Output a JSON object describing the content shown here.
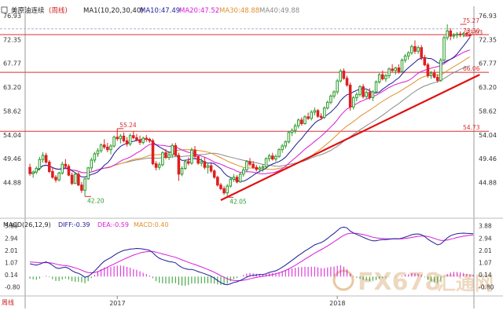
{
  "colors": {
    "up": "#2a9a2a",
    "down": "#df1f1f",
    "hline": "#d83030",
    "ma10": "#1c1c96",
    "ma20": "#d81ad8",
    "ma30": "#e0902a",
    "ma40": "#8a8a8a",
    "trend": "#e01010",
    "macd_dif": "#1c1c96",
    "macd_dea": "#d81ad8",
    "macd_pos": "#d81ad8",
    "macd_neg": "#2a9a2a",
    "axis_text": "#333333",
    "watermark": "#e8c8a0"
  },
  "legend": {
    "symbol": "美原油连续",
    "period": "(周线)",
    "ma_label": "MA1(10,20,30,40)",
    "ma10": "MA10:47.49",
    "ma20": "MA20:47.52",
    "ma30": "MA30:48.88",
    "ma40": "MA40:49.88",
    "macd_label": "MACD(26,12,9)",
    "diff": "DIFF:-0.39",
    "dea": "DEA:-0.59",
    "macd": "MACD:0.40"
  },
  "watermark": {
    "brand": "FX678",
    "cn": "汇通网"
  },
  "left_corner_label": "周线",
  "chart_data": [
    {
      "type": "candlestick",
      "title": "美原油连续 (周线)",
      "y_axis": {
        "min": 40.44,
        "max": 76.93,
        "ticks": [
          76.93,
          72.35,
          67.77,
          63.2,
          58.62,
          54.04,
          49.46,
          44.88,
          40.3
        ],
        "tick_labels": [
          "76.93",
          "72.35",
          "67.77",
          "63.20",
          "58.62",
          "54.04",
          "49.46",
          "44.88"
        ]
      },
      "x_axis": {
        "labels": [
          "2017",
          "2018"
        ],
        "label_index": [
          27,
          95
        ]
      },
      "horizontal_lines": [
        {
          "value": 73.3,
          "label": "73.30"
        },
        {
          "value": 66.06,
          "label": "66.06"
        },
        {
          "value": 54.73,
          "label": "54.73"
        }
      ],
      "dashed_line": {
        "value": 74.4
      },
      "annotations": [
        {
          "index": 27,
          "value": 55.24,
          "label": "55.24"
        },
        {
          "index": 17,
          "value": 42.2,
          "label": "42.20"
        },
        {
          "index": 61,
          "value": 42.05,
          "label": "42.05"
        },
        {
          "index": 133,
          "value": 75.27,
          "label": "75.27"
        },
        {
          "index": 134,
          "value": 73.03,
          "label": "73.03"
        }
      ],
      "trendline": {
        "from": {
          "index": 59,
          "value": 41.5
        },
        "to": {
          "index": 139,
          "value": 65.6
        }
      },
      "ma_series": [
        {
          "name": "MA10",
          "key": "ma10",
          "window": 10
        },
        {
          "name": "MA20",
          "key": "ma20",
          "window": 20
        },
        {
          "name": "MA30",
          "key": "ma30",
          "window": 30
        },
        {
          "name": "MA40",
          "key": "ma40",
          "window": 40
        }
      ],
      "ohlc": [
        [
          47.8,
          48.5,
          46.2,
          46.6
        ],
        [
          46.6,
          47.2,
          45.8,
          46.9
        ],
        [
          46.9,
          48.0,
          46.5,
          47.6
        ],
        [
          47.6,
          49.8,
          47.2,
          49.3
        ],
        [
          49.3,
          50.7,
          48.7,
          50.1
        ],
        [
          50.1,
          50.6,
          48.5,
          48.8
        ],
        [
          48.8,
          49.2,
          46.7,
          47.0
        ],
        [
          47.0,
          47.8,
          45.6,
          45.9
        ],
        [
          45.9,
          46.3,
          44.9,
          45.4
        ],
        [
          45.4,
          47.0,
          45.1,
          46.7
        ],
        [
          46.7,
          48.9,
          46.4,
          48.4
        ],
        [
          48.4,
          49.4,
          47.6,
          48.0
        ],
        [
          48.0,
          48.4,
          46.1,
          46.3
        ],
        [
          46.3,
          46.8,
          44.4,
          44.7
        ],
        [
          44.7,
          46.9,
          44.6,
          46.5
        ],
        [
          46.5,
          46.9,
          44.2,
          44.4
        ],
        [
          44.4,
          45.0,
          42.9,
          43.4
        ],
        [
          43.4,
          45.8,
          42.2,
          45.6
        ],
        [
          45.6,
          47.9,
          45.4,
          47.7
        ],
        [
          47.7,
          49.7,
          47.1,
          49.2
        ],
        [
          49.2,
          50.8,
          48.7,
          50.4
        ],
        [
          50.4,
          51.5,
          49.8,
          51.0
        ],
        [
          51.0,
          52.4,
          50.6,
          52.1
        ],
        [
          52.1,
          53.2,
          51.3,
          51.7
        ],
        [
          51.7,
          52.5,
          50.7,
          51.2
        ],
        [
          51.2,
          52.3,
          50.3,
          51.9
        ],
        [
          51.9,
          53.9,
          51.6,
          53.6
        ],
        [
          53.6,
          55.24,
          52.9,
          53.3
        ],
        [
          53.3,
          54.2,
          52.4,
          53.8
        ],
        [
          53.8,
          54.5,
          52.6,
          52.9
        ],
        [
          52.9,
          53.6,
          51.8,
          52.3
        ],
        [
          52.3,
          54.3,
          51.9,
          53.9
        ],
        [
          53.9,
          54.8,
          53.2,
          53.5
        ],
        [
          53.5,
          54.2,
          52.8,
          53.1
        ],
        [
          53.1,
          53.9,
          52.1,
          52.6
        ],
        [
          52.6,
          53.7,
          52.2,
          53.4
        ],
        [
          53.4,
          54.0,
          52.7,
          53.2
        ],
        [
          53.2,
          53.5,
          52.5,
          52.9
        ],
        [
          52.9,
          53.3,
          48.2,
          48.5
        ],
        [
          48.5,
          49.0,
          47.2,
          47.8
        ],
        [
          47.8,
          48.8,
          47.3,
          48.3
        ],
        [
          48.3,
          50.9,
          48.0,
          50.6
        ],
        [
          50.6,
          51.3,
          49.4,
          49.7
        ],
        [
          49.7,
          50.6,
          49.2,
          50.2
        ],
        [
          50.2,
          52.4,
          49.6,
          52.0
        ],
        [
          52.0,
          52.5,
          49.9,
          50.1
        ],
        [
          50.1,
          50.6,
          45.2,
          46.5
        ],
        [
          46.5,
          48.0,
          46.1,
          47.6
        ],
        [
          47.6,
          49.3,
          47.3,
          48.9
        ],
        [
          48.9,
          49.7,
          48.2,
          48.6
        ],
        [
          48.6,
          51.6,
          48.3,
          51.1
        ],
        [
          51.1,
          51.9,
          49.5,
          49.9
        ],
        [
          49.9,
          50.2,
          48.3,
          48.6
        ],
        [
          48.6,
          49.6,
          48.0,
          48.9
        ],
        [
          48.9,
          49.7,
          47.4,
          47.8
        ],
        [
          47.8,
          48.7,
          46.6,
          48.1
        ],
        [
          48.1,
          48.6,
          46.7,
          47.1
        ],
        [
          47.1,
          47.4,
          45.6,
          45.9
        ],
        [
          45.9,
          46.2,
          44.1,
          44.4
        ],
        [
          44.4,
          44.8,
          43.4,
          43.7
        ],
        [
          43.7,
          44.2,
          42.5,
          42.9
        ],
        [
          42.9,
          44.6,
          42.05,
          44.2
        ],
        [
          44.2,
          45.9,
          43.9,
          45.5
        ],
        [
          45.5,
          46.5,
          45.0,
          45.9
        ],
        [
          45.9,
          46.3,
          44.7,
          45.0
        ],
        [
          45.0,
          46.8,
          44.8,
          46.5
        ],
        [
          46.5,
          47.7,
          46.0,
          47.3
        ],
        [
          47.3,
          49.2,
          47.0,
          48.9
        ],
        [
          48.9,
          49.6,
          48.0,
          48.4
        ],
        [
          48.4,
          49.0,
          47.5,
          47.8
        ],
        [
          47.8,
          48.3,
          47.0,
          47.4
        ],
        [
          47.4,
          48.1,
          46.8,
          47.7
        ],
        [
          47.7,
          48.4,
          47.0,
          47.9
        ],
        [
          47.9,
          49.7,
          47.6,
          49.5
        ],
        [
          49.5,
          50.4,
          48.9,
          50.0
        ],
        [
          50.0,
          50.6,
          49.1,
          49.4
        ],
        [
          49.4,
          50.3,
          48.9,
          49.9
        ],
        [
          49.9,
          51.5,
          49.6,
          51.2
        ],
        [
          51.2,
          52.3,
          50.6,
          51.9
        ],
        [
          51.9,
          53.0,
          51.4,
          52.7
        ],
        [
          52.7,
          54.8,
          52.4,
          54.5
        ],
        [
          54.5,
          55.3,
          53.8,
          54.9
        ],
        [
          54.9,
          56.2,
          54.3,
          55.8
        ],
        [
          55.8,
          57.2,
          55.3,
          56.9
        ],
        [
          56.9,
          57.4,
          55.8,
          56.2
        ],
        [
          56.2,
          57.8,
          56.0,
          57.5
        ],
        [
          57.5,
          58.3,
          56.9,
          57.2
        ],
        [
          57.2,
          58.8,
          56.8,
          58.4
        ],
        [
          58.4,
          59.3,
          57.8,
          58.7
        ],
        [
          58.7,
          59.0,
          57.3,
          57.6
        ],
        [
          57.6,
          58.2,
          56.9,
          57.4
        ],
        [
          57.4,
          59.5,
          57.1,
          59.2
        ],
        [
          59.2,
          60.6,
          58.9,
          60.3
        ],
        [
          60.3,
          61.8,
          59.9,
          61.5
        ],
        [
          61.5,
          62.6,
          61.0,
          62.3
        ],
        [
          62.3,
          64.8,
          61.8,
          64.4
        ],
        [
          64.4,
          66.7,
          64.1,
          66.3
        ],
        [
          66.3,
          66.8,
          64.6,
          64.9
        ],
        [
          64.9,
          65.4,
          63.3,
          63.6
        ],
        [
          63.6,
          64.1,
          58.7,
          59.4
        ],
        [
          59.4,
          61.5,
          58.9,
          61.2
        ],
        [
          61.2,
          62.2,
          60.5,
          61.8
        ],
        [
          61.8,
          63.6,
          61.4,
          63.3
        ],
        [
          63.3,
          63.8,
          61.0,
          61.4
        ],
        [
          61.4,
          62.6,
          60.9,
          62.2
        ],
        [
          62.2,
          63.0,
          60.8,
          61.2
        ],
        [
          61.2,
          62.6,
          60.5,
          62.3
        ],
        [
          62.3,
          64.5,
          62.0,
          64.2
        ],
        [
          64.2,
          65.9,
          63.9,
          65.6
        ],
        [
          65.6,
          66.4,
          64.5,
          64.8
        ],
        [
          64.8,
          65.8,
          64.2,
          65.4
        ],
        [
          65.4,
          67.0,
          64.9,
          66.7
        ],
        [
          66.7,
          67.6,
          66.0,
          66.4
        ],
        [
          66.4,
          67.1,
          65.6,
          66.9
        ],
        [
          66.9,
          67.6,
          65.8,
          66.2
        ],
        [
          66.2,
          68.7,
          66.0,
          68.4
        ],
        [
          68.4,
          69.6,
          67.9,
          69.2
        ],
        [
          69.2,
          70.1,
          68.5,
          69.8
        ],
        [
          69.8,
          71.4,
          69.4,
          71.0
        ],
        [
          71.0,
          72.2,
          69.6,
          70.1
        ],
        [
          70.1,
          71.2,
          69.6,
          70.8
        ],
        [
          70.8,
          71.3,
          68.4,
          68.9
        ],
        [
          68.9,
          69.4,
          67.2,
          67.5
        ],
        [
          67.5,
          67.9,
          65.0,
          65.4
        ],
        [
          65.4,
          66.3,
          64.8,
          65.9
        ],
        [
          65.9,
          66.6,
          64.9,
          65.1
        ],
        [
          65.1,
          65.7,
          64.1,
          64.5
        ],
        [
          64.5,
          68.8,
          64.2,
          68.4
        ],
        [
          68.4,
          73.1,
          68.0,
          72.7
        ],
        [
          72.7,
          75.27,
          72.2,
          74.0
        ],
        [
          74.0,
          74.5,
          72.2,
          73.0
        ],
        [
          73.0,
          73.6,
          72.5,
          73.2
        ],
        [
          73.2,
          73.8,
          72.6,
          73.4
        ],
        [
          73.4,
          73.9,
          72.8,
          73.3
        ],
        [
          73.3,
          73.8,
          72.8,
          73.5
        ],
        [
          73.5,
          73.9,
          72.9,
          73.3
        ],
        [
          73.3,
          73.6,
          72.7,
          73.1
        ]
      ]
    },
    {
      "type": "macd",
      "title": "MACD(26,12,9)",
      "y_axis": {
        "min": -1.3,
        "max": 4.1,
        "ticks": [
          3.88,
          2.94,
          2.01,
          1.07,
          0.14,
          -0.8
        ],
        "tick_labels": [
          "3.88",
          "2.94",
          "2.01",
          "1.07",
          "0.14",
          "-0.80"
        ]
      },
      "dif": [
        0.98,
        0.92,
        0.88,
        0.94,
        1.05,
        1.12,
        1.02,
        0.86,
        0.68,
        0.62,
        0.68,
        0.72,
        0.62,
        0.45,
        0.32,
        0.25,
        0.12,
        -0.05,
        0.02,
        0.2,
        0.42,
        0.68,
        0.95,
        1.18,
        1.32,
        1.45,
        1.62,
        1.78,
        1.9,
        2.0,
        2.05,
        2.1,
        2.12,
        2.15,
        2.14,
        2.1,
        2.06,
        2.0,
        1.82,
        1.58,
        1.4,
        1.3,
        1.22,
        1.15,
        1.12,
        1.05,
        0.85,
        0.7,
        0.6,
        0.55,
        0.55,
        0.48,
        0.38,
        0.3,
        0.22,
        0.12,
        0.02,
        -0.12,
        -0.3,
        -0.46,
        -0.58,
        -0.62,
        -0.55,
        -0.45,
        -0.4,
        -0.3,
        -0.18,
        -0.04,
        0.06,
        0.1,
        0.12,
        0.15,
        0.16,
        0.22,
        0.32,
        0.38,
        0.44,
        0.56,
        0.72,
        0.88,
        1.06,
        1.24,
        1.42,
        1.62,
        1.78,
        1.96,
        2.1,
        2.26,
        2.42,
        2.52,
        2.6,
        2.74,
        2.92,
        3.12,
        3.3,
        3.52,
        3.72,
        3.78,
        3.72,
        3.48,
        3.34,
        3.22,
        3.12,
        3.0,
        2.9,
        2.8,
        2.74,
        2.74,
        2.8,
        2.82,
        2.82,
        2.86,
        2.88,
        2.9,
        2.88,
        2.94,
        3.02,
        3.1,
        3.2,
        3.24,
        3.26,
        3.2,
        3.06,
        2.86,
        2.7,
        2.56,
        2.42,
        2.5,
        2.72,
        2.96,
        3.12,
        3.22,
        3.28,
        3.3,
        3.32,
        3.3,
        3.29,
        3.28
      ],
      "dea": [
        1.12,
        1.1,
        1.08,
        1.06,
        1.06,
        1.07,
        1.06,
        1.02,
        0.96,
        0.9,
        0.86,
        0.84,
        0.8,
        0.74,
        0.66,
        0.58,
        0.49,
        0.38,
        0.31,
        0.29,
        0.31,
        0.38,
        0.48,
        0.6,
        0.72,
        0.84,
        0.96,
        1.08,
        1.2,
        1.32,
        1.43,
        1.54,
        1.64,
        1.72,
        1.8,
        1.86,
        1.9,
        1.93,
        1.92,
        1.87,
        1.8,
        1.73,
        1.67,
        1.6,
        1.54,
        1.47,
        1.38,
        1.28,
        1.18,
        1.09,
        1.0,
        0.92,
        0.83,
        0.74,
        0.64,
        0.54,
        0.44,
        0.33,
        0.2,
        0.07,
        -0.06,
        -0.17,
        -0.25,
        -0.29,
        -0.31,
        -0.31,
        -0.28,
        -0.23,
        -0.17,
        -0.11,
        -0.06,
        -0.02,
        0.02,
        0.06,
        0.11,
        0.16,
        0.22,
        0.29,
        0.37,
        0.47,
        0.59,
        0.72,
        0.86,
        1.02,
        1.17,
        1.33,
        1.48,
        1.63,
        1.79,
        1.93,
        2.06,
        2.2,
        2.34,
        2.5,
        2.66,
        2.83,
        3.0,
        3.15,
        3.26,
        3.3,
        3.31,
        3.3,
        3.26,
        3.21,
        3.15,
        3.08,
        3.01,
        2.96,
        2.93,
        2.91,
        2.89,
        2.88,
        2.88,
        2.88,
        2.88,
        2.89,
        2.91,
        2.95,
        2.99,
        3.04,
        3.08,
        3.1,
        3.1,
        3.06,
        3.0,
        2.92,
        2.83,
        2.77,
        2.76,
        2.8,
        2.86,
        2.92,
        2.99,
        3.04,
        3.09,
        3.13,
        3.16,
        3.18
      ]
    }
  ]
}
